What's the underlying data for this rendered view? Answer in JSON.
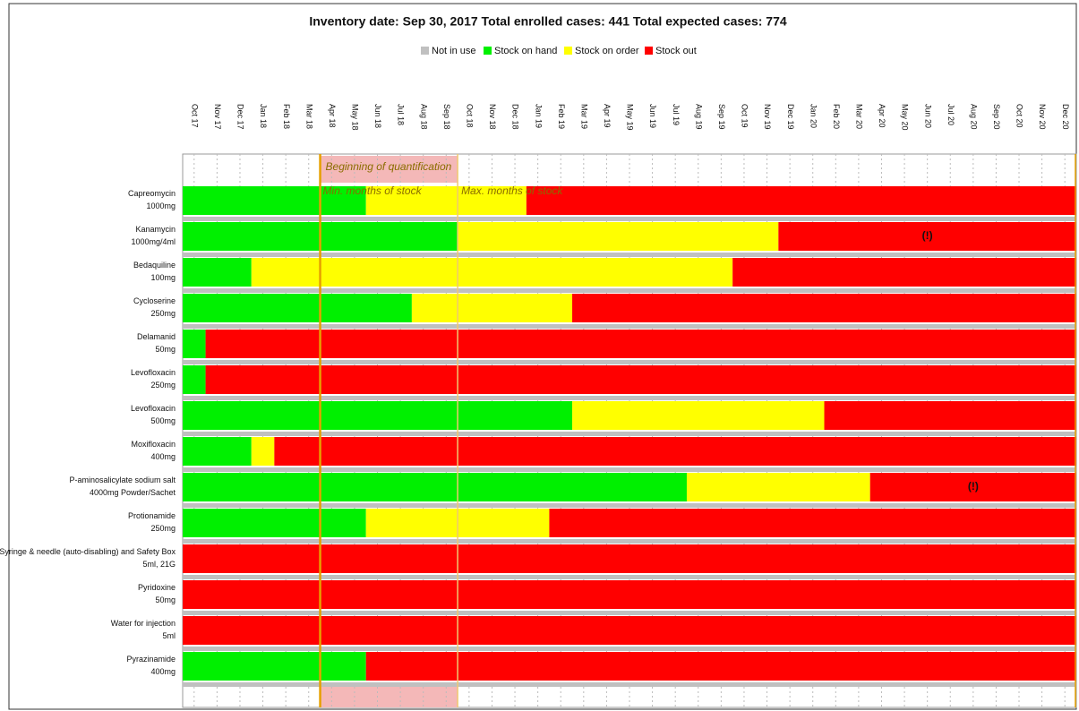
{
  "chart_data": {
    "type": "gantt",
    "title": "Inventory date: Sep 30, 2017 Total enrolled cases: 441 Total expected cases: 774",
    "legend": [
      {
        "name": "Not in use",
        "color": "#c0c0c0"
      },
      {
        "name": "Stock on hand",
        "color": "#00f000"
      },
      {
        "name": "Stock on order",
        "color": "#ffff00"
      },
      {
        "name": "Stock out",
        "color": "#ff0000"
      }
    ],
    "categories": [
      "Oct 17",
      "Nov 17",
      "Dec 17",
      "Jan 18",
      "Feb 18",
      "Mar 18",
      "Apr 18",
      "May 18",
      "Jun 18",
      "Jul 18",
      "Aug 18",
      "Sep 18",
      "Oct 18",
      "Nov 18",
      "Dec 18",
      "Jan 19",
      "Feb 19",
      "Mar 19",
      "Apr 19",
      "May 19",
      "Jun 19",
      "Jul 19",
      "Aug 19",
      "Sep 19",
      "Oct 19",
      "Nov 19",
      "Dec 19",
      "Jan 20",
      "Feb 20",
      "Mar 20",
      "Apr 20",
      "May 20",
      "Jun 20",
      "Jul 20",
      "Aug 20",
      "Sep 20",
      "Oct 20",
      "Nov 20",
      "Dec 20"
    ],
    "quantification": {
      "label": "Beginning of quantification",
      "start": "Apr 18",
      "end": "Oct 18"
    },
    "min_label": "Min. months of stock",
    "max_label": "Max. months of stock",
    "rows": [
      {
        "label": [
          "Capreomycin",
          "1000mg"
        ],
        "segments": [
          {
            "status": "Stock on hand",
            "months": 8
          },
          {
            "status": "Stock on order",
            "months": 7
          },
          {
            "status": "Stock out",
            "months": 24
          }
        ]
      },
      {
        "label": [
          "Kanamycin",
          "1000mg/4ml"
        ],
        "flag": "(!)",
        "segments": [
          {
            "status": "Stock on hand",
            "months": 12
          },
          {
            "status": "Stock on order",
            "months": 14
          },
          {
            "status": "Stock out",
            "months": 13
          }
        ]
      },
      {
        "label": [
          "Bedaquiline",
          "100mg"
        ],
        "segments": [
          {
            "status": "Stock on hand",
            "months": 3
          },
          {
            "status": "Stock on order",
            "months": 21
          },
          {
            "status": "Stock out",
            "months": 15
          }
        ]
      },
      {
        "label": [
          "Cycloserine",
          "250mg"
        ],
        "segments": [
          {
            "status": "Stock on hand",
            "months": 10
          },
          {
            "status": "Stock on order",
            "months": 7
          },
          {
            "status": "Stock out",
            "months": 22
          }
        ]
      },
      {
        "label": [
          "Delamanid",
          "50mg"
        ],
        "segments": [
          {
            "status": "Stock on hand",
            "months": 1
          },
          {
            "status": "Stock out",
            "months": 38
          }
        ]
      },
      {
        "label": [
          "Levofloxacin",
          "250mg"
        ],
        "segments": [
          {
            "status": "Stock on hand",
            "months": 1
          },
          {
            "status": "Stock out",
            "months": 38
          }
        ]
      },
      {
        "label": [
          "Levofloxacin",
          "500mg"
        ],
        "segments": [
          {
            "status": "Stock on hand",
            "months": 17
          },
          {
            "status": "Stock on order",
            "months": 11
          },
          {
            "status": "Stock out",
            "months": 11
          }
        ]
      },
      {
        "label": [
          "Moxifloxacin",
          "400mg"
        ],
        "segments": [
          {
            "status": "Stock on hand",
            "months": 3
          },
          {
            "status": "Stock on order",
            "months": 1
          },
          {
            "status": "Stock out",
            "months": 35
          }
        ]
      },
      {
        "label": [
          "P-aminosalicylate sodium salt",
          "4000mg Powder/Sachet"
        ],
        "flag": "(!)",
        "segments": [
          {
            "status": "Stock on hand",
            "months": 22
          },
          {
            "status": "Stock on order",
            "months": 8
          },
          {
            "status": "Stock out",
            "months": 9
          }
        ]
      },
      {
        "label": [
          "Protionamide",
          "250mg"
        ],
        "segments": [
          {
            "status": "Stock on hand",
            "months": 8
          },
          {
            "status": "Stock on order",
            "months": 8
          },
          {
            "status": "Stock out",
            "months": 23
          }
        ]
      },
      {
        "label": [
          "Syringe & needle (auto-disabling) and Safety Box",
          "5ml, 21G"
        ],
        "segments": [
          {
            "status": "Stock out",
            "months": 39
          }
        ]
      },
      {
        "label": [
          "Pyridoxine",
          "50mg"
        ],
        "segments": [
          {
            "status": "Stock out",
            "months": 39
          }
        ]
      },
      {
        "label": [
          "Water for injection",
          "5ml"
        ],
        "segments": [
          {
            "status": "Stock out",
            "months": 39
          }
        ]
      },
      {
        "label": [
          "Pyrazinamide",
          "400mg"
        ],
        "segments": [
          {
            "status": "Stock on hand",
            "months": 8
          },
          {
            "status": "Stock out",
            "months": 31
          }
        ]
      }
    ]
  }
}
